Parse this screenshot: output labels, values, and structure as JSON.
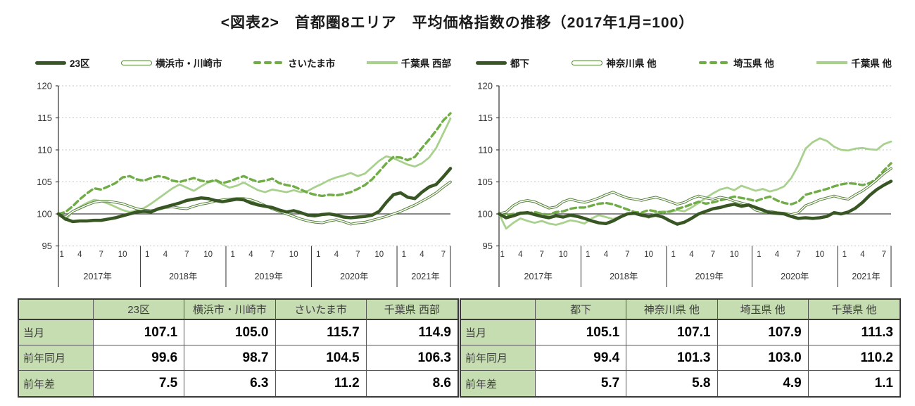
{
  "title": "<図表2>　首都圏8エリア　平均価格指数の推移（2017年1月=100）",
  "palette": {
    "dark": "#375623",
    "mid": "#538135",
    "accent": "#70ad47",
    "light": "#a9d18e",
    "table_green": "#c6ddb2",
    "grid_dotted": "#c4c4c4",
    "axis": "#404040"
  },
  "chart_data": [
    {
      "type": "line",
      "panel": "left",
      "ylim": [
        95,
        120
      ],
      "y_ticks": [
        120,
        115,
        110,
        105,
        100,
        95
      ],
      "baseline": 100,
      "grid": "horizontal-dotted",
      "legend_position": "top",
      "x_start": "2017-01",
      "x_end": "2021-08",
      "years": [
        {
          "label": "2017年",
          "months": [
            1,
            4,
            7,
            10
          ]
        },
        {
          "label": "2018年",
          "months": [
            1,
            4,
            7,
            10
          ]
        },
        {
          "label": "2019年",
          "months": [
            1,
            4,
            7,
            10
          ]
        },
        {
          "label": "2020年",
          "months": [
            1,
            4,
            7,
            10
          ]
        },
        {
          "label": "2021年",
          "months": [
            1,
            4,
            7
          ]
        }
      ],
      "series": [
        {
          "name": "23区",
          "style": "thick",
          "values": [
            100,
            99.2,
            98.8,
            98.9,
            98.9,
            99,
            99,
            99.2,
            99.4,
            99.7,
            100,
            100.3,
            100.4,
            100.3,
            100.8,
            101.1,
            101.4,
            101.7,
            102.1,
            102.3,
            102.5,
            102.4,
            102.1,
            101.9,
            102.1,
            102.3,
            102.2,
            101.7,
            101.4,
            101.2,
            101,
            100.6,
            100.3,
            100.5,
            100.2,
            99.8,
            99.7,
            99.9,
            100,
            99.8,
            99.5,
            99.4,
            99.5,
            99.6,
            99.8,
            100.4,
            101.8,
            103,
            103.3,
            102.6,
            102.4,
            103.4,
            104.2,
            104.6,
            105.8,
            107.1
          ]
        },
        {
          "name": "横浜市・川崎市",
          "style": "double",
          "values": [
            100,
            99.5,
            100.4,
            100.9,
            101.4,
            101.8,
            102,
            102,
            101.8,
            101.6,
            101.2,
            100.8,
            100.6,
            100.5,
            100.7,
            101,
            101.1,
            100.9,
            100.8,
            101.2,
            101.5,
            101.7,
            102,
            102.2,
            102.3,
            102.4,
            102.4,
            102.2,
            101.8,
            101.3,
            100.8,
            100.4,
            100,
            99.6,
            99.2,
            98.9,
            98.7,
            98.6,
            98.9,
            99.1,
            98.8,
            98.4,
            98.6,
            98.7,
            99,
            99.3,
            99.6,
            100,
            100.4,
            100.9,
            101.4,
            102,
            102.6,
            103.3,
            104.2,
            105
          ]
        },
        {
          "name": "さいたま市",
          "style": "dashed",
          "values": [
            100,
            100.3,
            101.2,
            102.3,
            103.2,
            104,
            103.8,
            104.3,
            104.8,
            105.7,
            105.9,
            105.4,
            105.2,
            105.6,
            105.9,
            105.7,
            105.2,
            105,
            105.3,
            105.6,
            105.2,
            105,
            105.3,
            104.8,
            105.1,
            105.5,
            105.9,
            105.4,
            105,
            105.2,
            105.5,
            104.8,
            104.5,
            104.3,
            103.8,
            103.3,
            103,
            102.8,
            103,
            102.9,
            103.1,
            103.4,
            103.9,
            104.5,
            105.4,
            106.6,
            107.9,
            108.9,
            108.8,
            108.4,
            108.9,
            110.3,
            111.6,
            113,
            114.6,
            115.7
          ]
        },
        {
          "name": "千葉県 西部",
          "style": "light",
          "values": [
            100,
            99,
            100.4,
            101.1,
            101.7,
            102.2,
            102,
            101.6,
            101.1,
            100.6,
            100.3,
            100.5,
            100.9,
            101.6,
            102.4,
            103.2,
            104,
            104.6,
            104.1,
            103.6,
            104.3,
            104.9,
            105.2,
            104.6,
            104.1,
            104.4,
            104.9,
            104.3,
            103.7,
            103.4,
            103.8,
            103.6,
            103.4,
            103.7,
            103.4,
            103.6,
            104.2,
            104.7,
            105.3,
            105.7,
            106,
            106.4,
            105.9,
            106.3,
            107.3,
            108.3,
            109,
            108.7,
            108.2,
            107.7,
            107.4,
            107.9,
            108.8,
            110.3,
            112.6,
            114.9
          ]
        }
      ]
    },
    {
      "type": "line",
      "panel": "right",
      "ylim": [
        95,
        120
      ],
      "y_ticks": [
        120,
        115,
        110,
        105,
        100,
        95
      ],
      "baseline": 100,
      "grid": "horizontal-dotted",
      "legend_position": "top",
      "x_start": "2017-01",
      "x_end": "2021-08",
      "years": [
        {
          "label": "2017年",
          "months": [
            1,
            4,
            7,
            10
          ]
        },
        {
          "label": "2018年",
          "months": [
            1,
            4,
            7,
            10
          ]
        },
        {
          "label": "2019年",
          "months": [
            1,
            4,
            7,
            10
          ]
        },
        {
          "label": "2020年",
          "months": [
            1,
            4,
            7,
            10
          ]
        },
        {
          "label": "2021年",
          "months": [
            1,
            4,
            7
          ]
        }
      ],
      "series": [
        {
          "name": "都下",
          "style": "thick",
          "values": [
            100,
            99.4,
            99.7,
            100.1,
            100.2,
            99.9,
            99.6,
            99.4,
            99.7,
            99.5,
            99.8,
            99.6,
            99.3,
            98.9,
            98.6,
            98.5,
            98.9,
            99.5,
            100,
            100.1,
            99.8,
            99.6,
            99.8,
            99.5,
            98.9,
            98.4,
            98.7,
            99.3,
            100,
            100.4,
            100.8,
            101,
            101.3,
            101.5,
            101.2,
            101.4,
            101,
            100.6,
            100.2,
            100.1,
            100,
            99.6,
            99.3,
            99.4,
            99.3,
            99.4,
            99.6,
            100.2,
            100,
            100.3,
            100.9,
            101.8,
            102.9,
            103.8,
            104.5,
            105.1
          ]
        },
        {
          "name": "神奈川県 他",
          "style": "double",
          "values": [
            100,
            100.3,
            101.3,
            101.9,
            102.1,
            101.9,
            101.4,
            100.9,
            101.1,
            101.9,
            102.3,
            102,
            101.8,
            102.1,
            102.5,
            103,
            103.4,
            102.9,
            102.5,
            102.3,
            102.1,
            102.4,
            102.6,
            102.3,
            101.9,
            101.5,
            101.8,
            102.4,
            102.8,
            102.5,
            102.3,
            102.6,
            102.4,
            102,
            101.7,
            101.4,
            100.6,
            100.3,
            100.4,
            100.2,
            100.1,
            99.9,
            100.2,
            101.3,
            101.7,
            102.2,
            102.5,
            102.8,
            102.5,
            102.3,
            103,
            103.6,
            104.4,
            105.3,
            106.3,
            107.1
          ]
        },
        {
          "name": "埼玉県 他",
          "style": "dashed",
          "values": [
            100,
            99.8,
            100,
            100.2,
            100.1,
            100.3,
            100,
            99.9,
            100.3,
            100.4,
            100.8,
            101,
            101,
            101.3,
            101.6,
            101.7,
            101.5,
            101.1,
            100.7,
            100.3,
            100.2,
            100.6,
            100.4,
            100.2,
            100.4,
            100.8,
            101.1,
            101.5,
            101.9,
            101.6,
            101.8,
            102.1,
            102.4,
            102.7,
            102.5,
            102.3,
            102,
            102.4,
            102.7,
            102.1,
            101.7,
            101.5,
            101.9,
            103,
            103.3,
            103.6,
            103.9,
            104.3,
            104.6,
            104.8,
            104.7,
            104.5,
            104.8,
            105.5,
            106.8,
            107.9
          ]
        },
        {
          "name": "千葉県 他",
          "style": "light",
          "values": [
            100,
            97.7,
            98.6,
            99.3,
            98.9,
            98.6,
            98.9,
            98.5,
            98.3,
            98.6,
            99,
            98.8,
            98.5,
            99.3,
            99.8,
            99.5,
            99.2,
            99.6,
            99.9,
            100.3,
            99.9,
            99.4,
            100.2,
            100.4,
            100.3,
            100.6,
            100.4,
            101,
            101.7,
            102.5,
            103.2,
            103.8,
            104.1,
            103.7,
            104.4,
            104,
            103.6,
            103.9,
            103.5,
            103.8,
            104.3,
            105.6,
            107.6,
            110.2,
            111.2,
            111.8,
            111.4,
            110.5,
            110,
            109.9,
            110.2,
            110.3,
            110.1,
            110,
            110.9,
            111.3
          ]
        }
      ]
    }
  ],
  "tables": [
    {
      "panel": "left",
      "columns": [
        "",
        "23区",
        "横浜市・川崎市",
        "さいたま市",
        "千葉県 西部"
      ],
      "rows": [
        {
          "label": "当月",
          "values": [
            "107.1",
            "105.0",
            "115.7",
            "114.9"
          ]
        },
        {
          "label": "前年同月",
          "values": [
            "99.6",
            "98.7",
            "104.5",
            "106.3"
          ]
        },
        {
          "label": "前年差",
          "values": [
            "7.5",
            "6.3",
            "11.2",
            "8.6"
          ]
        }
      ]
    },
    {
      "panel": "right",
      "columns": [
        "",
        "都下",
        "神奈川県 他",
        "埼玉県 他",
        "千葉県 他"
      ],
      "rows": [
        {
          "label": "当月",
          "values": [
            "105.1",
            "107.1",
            "107.9",
            "111.3"
          ]
        },
        {
          "label": "前年同月",
          "values": [
            "99.4",
            "101.3",
            "103.0",
            "110.2"
          ]
        },
        {
          "label": "前年差",
          "values": [
            "5.7",
            "5.8",
            "4.9",
            "1.1"
          ]
        }
      ]
    }
  ]
}
